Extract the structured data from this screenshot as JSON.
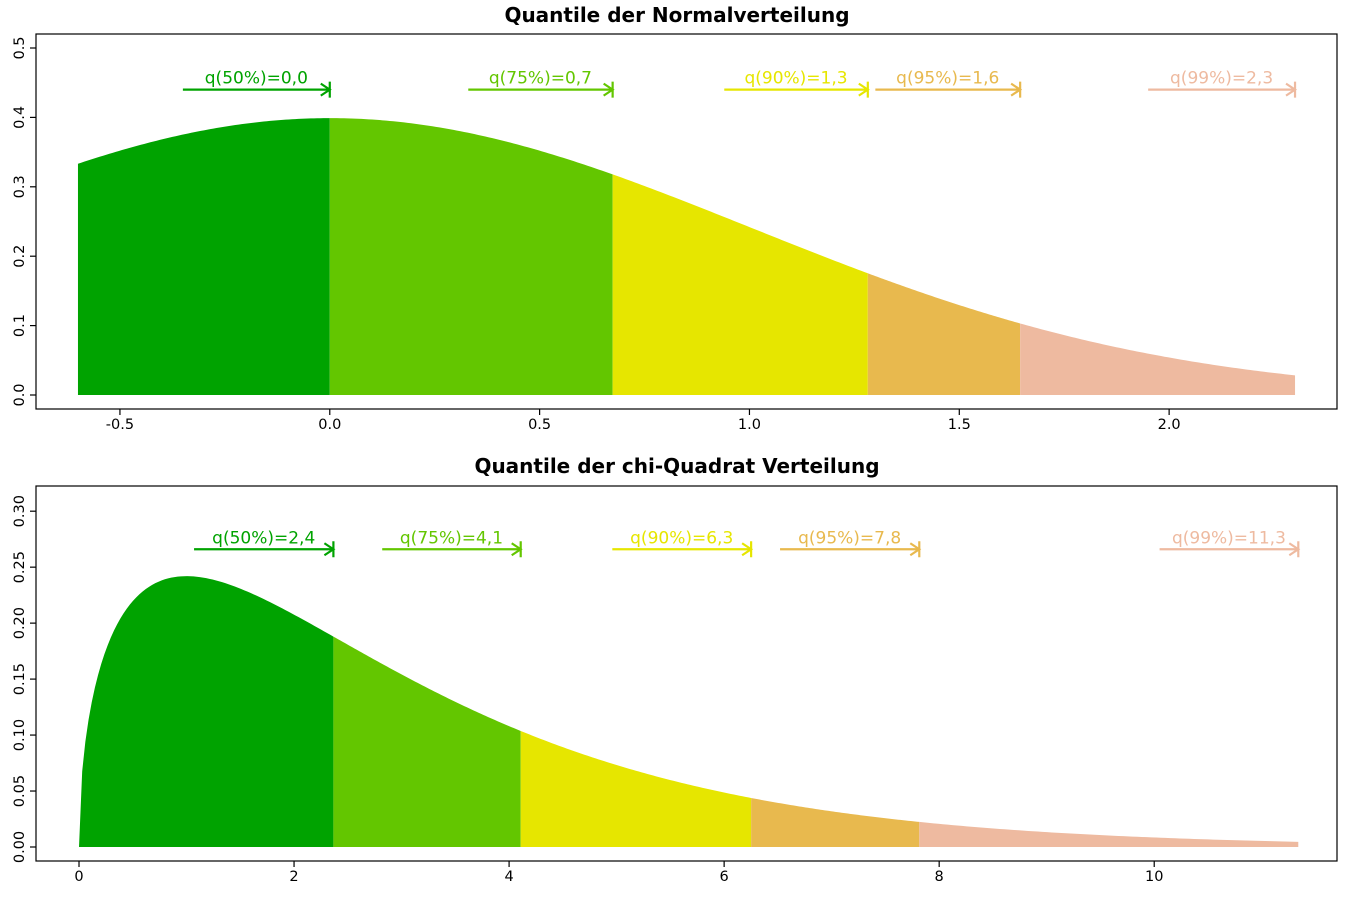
{
  "colors": {
    "q50": "#00a300",
    "q75": "#63c600",
    "q90": "#e6e600",
    "q95": "#e8b94e",
    "q99": "#eebaa0"
  },
  "chart_data": [
    {
      "type": "area",
      "distribution": "normal",
      "title": "Quantile der Normalverteilung",
      "xlim": [
        -0.7,
        2.4
      ],
      "ylim": [
        0,
        0.5
      ],
      "x_range": [
        -0.6,
        2.3
      ],
      "x_ticks": [
        -0.5,
        0.0,
        0.5,
        1.0,
        1.5,
        2.0
      ],
      "x_tick_labels": [
        "-0.5",
        "0.0",
        "0.5",
        "1.0",
        "1.5",
        "2.0"
      ],
      "y_ticks": [
        0.0,
        0.1,
        0.2,
        0.3,
        0.4,
        0.5
      ],
      "y_tick_labels": [
        "0.0",
        "0.1",
        "0.2",
        "0.3",
        "0.4",
        "0.5"
      ],
      "quantile_y": 0.44,
      "quantiles": [
        {
          "p": "50%",
          "value": 0.0,
          "label": "q(50%)=0,0",
          "color_key": "q50",
          "arrow_start": -0.35
        },
        {
          "p": "75%",
          "value": 0.674,
          "label": "q(75%)=0,7",
          "color_key": "q75",
          "arrow_start": 0.33
        },
        {
          "p": "90%",
          "value": 1.282,
          "label": "q(90%)=1,3",
          "color_key": "q90",
          "arrow_start": 0.94
        },
        {
          "p": "95%",
          "value": 1.645,
          "label": "q(95%)=1,6",
          "color_key": "q95",
          "arrow_start": 1.3
        },
        {
          "p": "99%",
          "value": 2.3,
          "label": "q(99%)=2,3",
          "color_key": "q99",
          "arrow_start": 1.95
        }
      ]
    },
    {
      "type": "area",
      "distribution": "chi-squared",
      "degrees_of_freedom": 3,
      "title": "Quantile der chi-Quadrat Verteilung",
      "xlim": [
        -0.4,
        11.7
      ],
      "ylim": [
        0,
        0.31
      ],
      "x_range": [
        0,
        11.34
      ],
      "x_ticks": [
        0,
        2,
        4,
        6,
        8,
        10
      ],
      "x_tick_labels": [
        "0",
        "2",
        "4",
        "6",
        "8",
        "10"
      ],
      "y_ticks": [
        0.0,
        0.05,
        0.1,
        0.15,
        0.2,
        0.25,
        0.3
      ],
      "y_tick_labels": [
        "0.00",
        "0.05",
        "0.10",
        "0.15",
        "0.20",
        "0.25",
        "0.30"
      ],
      "quantile_y": 0.266,
      "quantiles": [
        {
          "p": "50%",
          "value": 2.366,
          "label": "q(50%)=2,4",
          "color_key": "q50",
          "arrow_start": 1.07
        },
        {
          "p": "75%",
          "value": 4.108,
          "label": "q(75%)=4,1",
          "color_key": "q75",
          "arrow_start": 2.82
        },
        {
          "p": "90%",
          "value": 6.251,
          "label": "q(90%)=6,3",
          "color_key": "q90",
          "arrow_start": 4.96
        },
        {
          "p": "95%",
          "value": 7.815,
          "label": "q(95%)=7,8",
          "color_key": "q95",
          "arrow_start": 6.52
        },
        {
          "p": "99%",
          "value": 11.34,
          "label": "q(99%)=11,3",
          "color_key": "q99",
          "arrow_start": 10.05
        }
      ]
    }
  ]
}
